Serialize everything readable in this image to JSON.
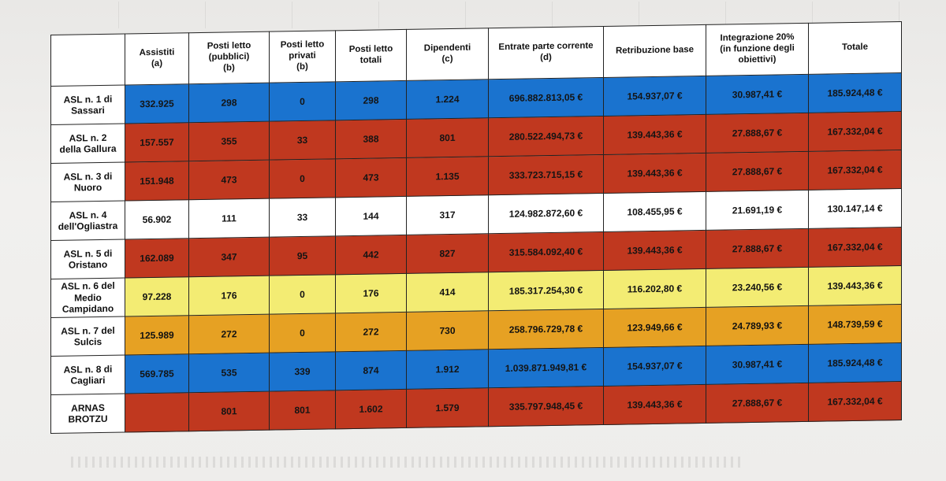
{
  "table": {
    "headers": [
      "",
      "Assistiti\n(a)",
      "Posti letto\n(pubblici)\n(b)",
      "Posti letto\nprivati\n(b)",
      "Posti letto\ntotali",
      "Dipendenti\n(c)",
      "Entrate parte corrente\n(d)",
      "Retribuzione base",
      "Integrazione 20%\n(in funzione degli\nobiettivi)",
      "Totale"
    ],
    "colors": {
      "blue": "#1a73cf",
      "red": "#c0381f",
      "white": "#ffffff",
      "yellow": "#f3ec73",
      "orange": "#e6a123"
    },
    "rows": [
      {
        "name": "ASL n. 1 di\nSassari",
        "color": "blue",
        "values": [
          "332.925",
          "298",
          "0",
          "298",
          "1.224",
          "696.882.813,05 €",
          "154.937,07 €",
          "30.987,41 €",
          "185.924,48 €"
        ]
      },
      {
        "name": "ASL n. 2\ndella Gallura",
        "color": "red",
        "values": [
          "157.557",
          "355",
          "33",
          "388",
          "801",
          "280.522.494,73 €",
          "139.443,36 €",
          "27.888,67 €",
          "167.332,04 €"
        ]
      },
      {
        "name": "ASL n. 3 di\nNuoro",
        "color": "red",
        "values": [
          "151.948",
          "473",
          "0",
          "473",
          "1.135",
          "333.723.715,15 €",
          "139.443,36 €",
          "27.888,67 €",
          "167.332,04 €"
        ]
      },
      {
        "name": "ASL n. 4\ndell'Ogliastra",
        "color": "white",
        "values": [
          "56.902",
          "111",
          "33",
          "144",
          "317",
          "124.982.872,60 €",
          "108.455,95 €",
          "21.691,19 €",
          "130.147,14 €"
        ]
      },
      {
        "name": "ASL n. 5 di\nOristano",
        "color": "red",
        "values": [
          "162.089",
          "347",
          "95",
          "442",
          "827",
          "315.584.092,40 €",
          "139.443,36 €",
          "27.888,67 €",
          "167.332,04 €"
        ]
      },
      {
        "name": "ASL n. 6 del\nMedio\nCampidano",
        "color": "yellow",
        "values": [
          "97.228",
          "176",
          "0",
          "176",
          "414",
          "185.317.254,30 €",
          "116.202,80 €",
          "23.240,56 €",
          "139.443,36 €"
        ]
      },
      {
        "name": "ASL n. 7 del\nSulcis",
        "color": "orange",
        "values": [
          "125.989",
          "272",
          "0",
          "272",
          "730",
          "258.796.729,78 €",
          "123.949,66 €",
          "24.789,93 €",
          "148.739,59 €"
        ]
      },
      {
        "name": "ASL n. 8 di\nCagliari",
        "color": "blue",
        "values": [
          "569.785",
          "535",
          "339",
          "874",
          "1.912",
          "1.039.871.949,81 €",
          "154.937,07 €",
          "30.987,41 €",
          "185.924,48 €"
        ]
      },
      {
        "name": "ARNAS\nBROTZU",
        "color": "red",
        "values": [
          "",
          "801",
          "801",
          "1.602",
          "1.579",
          "335.797.948,45 €",
          "139.443,36 €",
          "27.888,67 €",
          "167.332,04 €"
        ]
      }
    ]
  }
}
